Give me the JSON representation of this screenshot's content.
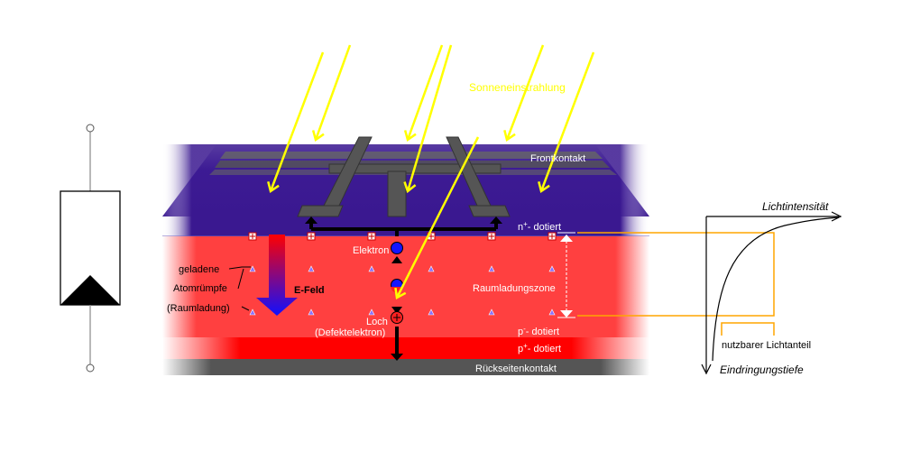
{
  "labels": {
    "sunlight": "Sonneneinstrahlung",
    "front_contact": "Frontkontakt",
    "n_doped": "n",
    "n_doped_sup": "+",
    "n_doped_suffix": "- dotiert",
    "electron": "Elektron",
    "hole": "Loch",
    "defect_electron": "(Defektelektron)",
    "efield": "E-Feld",
    "charged_1": "geladene",
    "charged_2": "Atomrümpfe",
    "charged_3": "(Raumladung)",
    "space_charge_zone": "Raumladungszone",
    "p_doped": "p",
    "p_doped_sup": "-",
    "p_doped_suffix": "- dotiert",
    "p_plus_doped": "p",
    "p_plus_doped_sup": "+",
    "p_plus_doped_suffix": "- dotiert",
    "back_contact": "Rückseitenkontakt",
    "light_intensity": "Lichtintensität",
    "useful_light": "nutzbarer Lichtanteil",
    "penetration_depth": "Eindringungstiefe"
  },
  "colors": {
    "sun_ray": "#ffff00",
    "n_layer": "#3a1890",
    "p_layer": "#ff3a3a",
    "p_plus_layer": "#ff0000",
    "contact": "#555555",
    "efield_arrow_top": "#ff0000",
    "efield_arrow_bottom": "#2020ff",
    "orange_guide": "#ffa500"
  }
}
